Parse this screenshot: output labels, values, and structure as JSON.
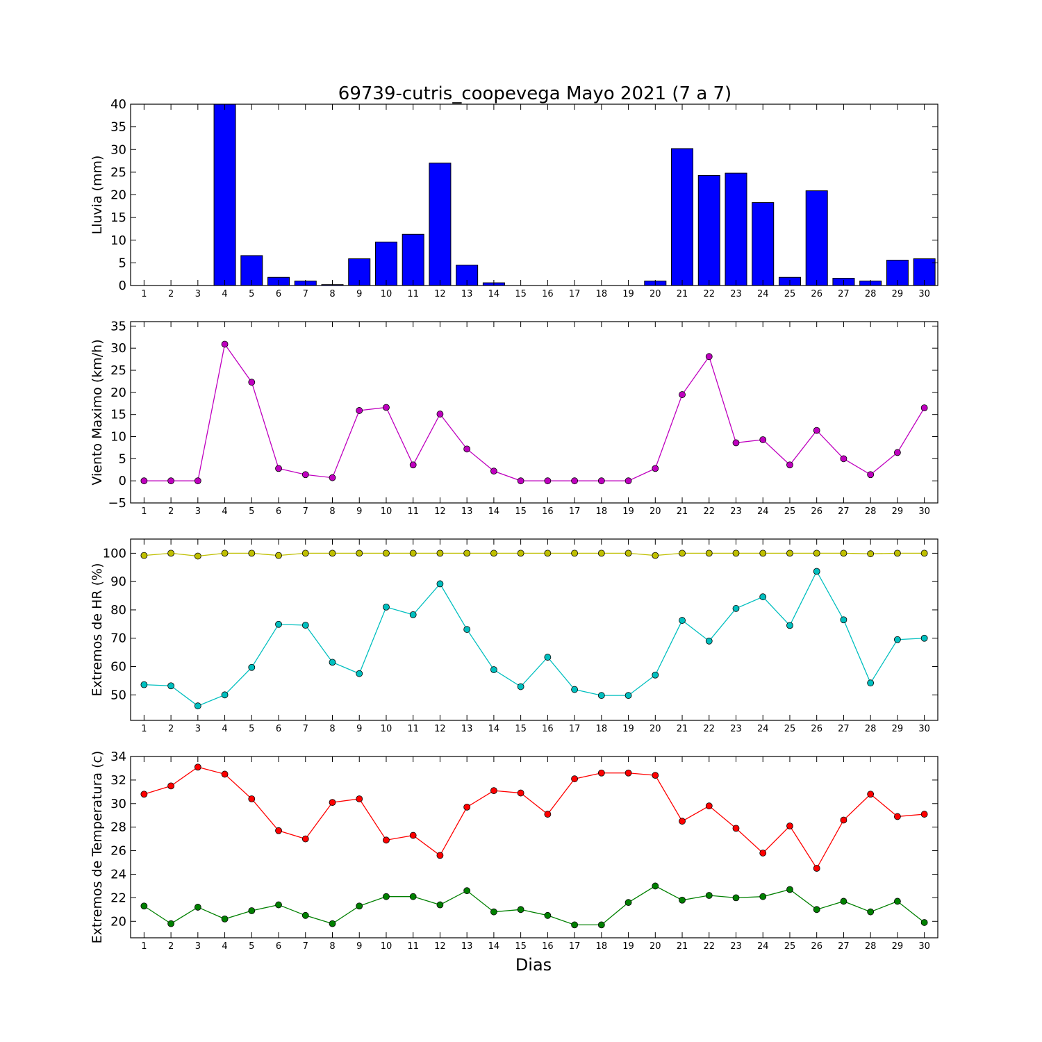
{
  "title": "69739-cutris_coopevega Mayo 2021  (7 a 7)",
  "xlabel": "Dias",
  "colors": {
    "bar_fill": "#0000ff",
    "wind": "#bf00bf",
    "hr_max": "#bfbf00",
    "hr_min": "#00bfbf",
    "temp_max": "#ff0000",
    "temp_min": "#008000"
  },
  "chart_data": [
    {
      "type": "bar",
      "ylabel": "Lluvia (mm)",
      "x": [
        1,
        2,
        3,
        4,
        5,
        6,
        7,
        8,
        9,
        10,
        11,
        12,
        13,
        14,
        15,
        16,
        17,
        18,
        19,
        20,
        21,
        22,
        23,
        24,
        25,
        26,
        27,
        28,
        29,
        30
      ],
      "ylim": [
        0,
        40
      ],
      "yticks": [
        0,
        5,
        10,
        15,
        20,
        25,
        30,
        35,
        40
      ],
      "series": [
        {
          "values": [
            0,
            0,
            0,
            40,
            6.6,
            1.8,
            1.0,
            0.2,
            5.9,
            9.6,
            11.3,
            27.0,
            4.5,
            0.6,
            0,
            0,
            0,
            0,
            0,
            1.0,
            30.2,
            24.3,
            24.8,
            18.3,
            1.8,
            20.9,
            1.6,
            1.0,
            5.6,
            5.9
          ]
        }
      ]
    },
    {
      "type": "line",
      "ylabel": "Viento Maximo (km/h)",
      "x": [
        1,
        2,
        3,
        4,
        5,
        6,
        7,
        8,
        9,
        10,
        11,
        12,
        13,
        14,
        15,
        16,
        17,
        18,
        19,
        20,
        21,
        22,
        23,
        24,
        25,
        26,
        27,
        28,
        29,
        30
      ],
      "ylim": [
        -5,
        36
      ],
      "yticks": [
        -5,
        0,
        5,
        10,
        15,
        20,
        25,
        30,
        35
      ],
      "series": [
        {
          "values": [
            0,
            0,
            0,
            30.9,
            22.3,
            2.8,
            1.4,
            0.7,
            15.9,
            16.6,
            3.6,
            15.1,
            7.2,
            2.2,
            0,
            0,
            0,
            0,
            0,
            2.8,
            19.5,
            28.1,
            8.6,
            9.3,
            3.6,
            11.4,
            5.0,
            1.4,
            6.4,
            16.5
          ]
        }
      ]
    },
    {
      "type": "line",
      "ylabel": "Extremos de HR (%)",
      "x": [
        1,
        2,
        3,
        4,
        5,
        6,
        7,
        8,
        9,
        10,
        11,
        12,
        13,
        14,
        15,
        16,
        17,
        18,
        19,
        20,
        21,
        22,
        23,
        24,
        25,
        26,
        27,
        28,
        29,
        30
      ],
      "ylim": [
        41,
        105
      ],
      "yticks": [
        50,
        60,
        70,
        80,
        90,
        100
      ],
      "series": [
        {
          "values": [
            99.2,
            100,
            99.0,
            100,
            100,
            99.2,
            100,
            100,
            100,
            100,
            100,
            100,
            100,
            100,
            100,
            100,
            100,
            100,
            100,
            99.2,
            100,
            100,
            100,
            100,
            100,
            100,
            100,
            99.8,
            100,
            100
          ]
        },
        {
          "values": [
            53.6,
            53.2,
            46.1,
            50.0,
            59.7,
            74.9,
            74.6,
            61.5,
            57.5,
            81.0,
            78.3,
            89.2,
            73.1,
            58.9,
            52.9,
            63.3,
            51.9,
            49.8,
            49.8,
            57.0,
            76.3,
            69.0,
            80.5,
            84.6,
            74.5,
            93.6,
            76.5,
            54.2,
            69.5,
            70.0
          ]
        }
      ]
    },
    {
      "type": "line",
      "ylabel": "Extremos de Temperatura (c)",
      "x": [
        1,
        2,
        3,
        4,
        5,
        6,
        7,
        8,
        9,
        10,
        11,
        12,
        13,
        14,
        15,
        16,
        17,
        18,
        19,
        20,
        21,
        22,
        23,
        24,
        25,
        26,
        27,
        28,
        29,
        30
      ],
      "ylim": [
        18.6,
        34
      ],
      "yticks": [
        20,
        22,
        24,
        26,
        28,
        30,
        32,
        34
      ],
      "series": [
        {
          "values": [
            30.8,
            31.5,
            33.1,
            32.5,
            30.4,
            27.7,
            27.0,
            30.1,
            30.4,
            26.9,
            27.3,
            25.6,
            29.7,
            31.1,
            30.9,
            29.1,
            32.1,
            32.6,
            32.6,
            32.4,
            28.5,
            29.8,
            27.9,
            25.8,
            28.1,
            24.5,
            28.6,
            30.8,
            28.9,
            29.1
          ]
        },
        {
          "values": [
            21.3,
            19.8,
            21.2,
            20.2,
            20.9,
            21.4,
            20.5,
            19.8,
            21.3,
            22.1,
            22.1,
            21.4,
            22.6,
            20.8,
            21.0,
            20.5,
            19.7,
            19.7,
            21.6,
            23.0,
            21.8,
            22.2,
            22.0,
            22.1,
            22.7,
            21.0,
            21.7,
            20.8,
            21.7,
            19.9
          ]
        }
      ]
    }
  ]
}
